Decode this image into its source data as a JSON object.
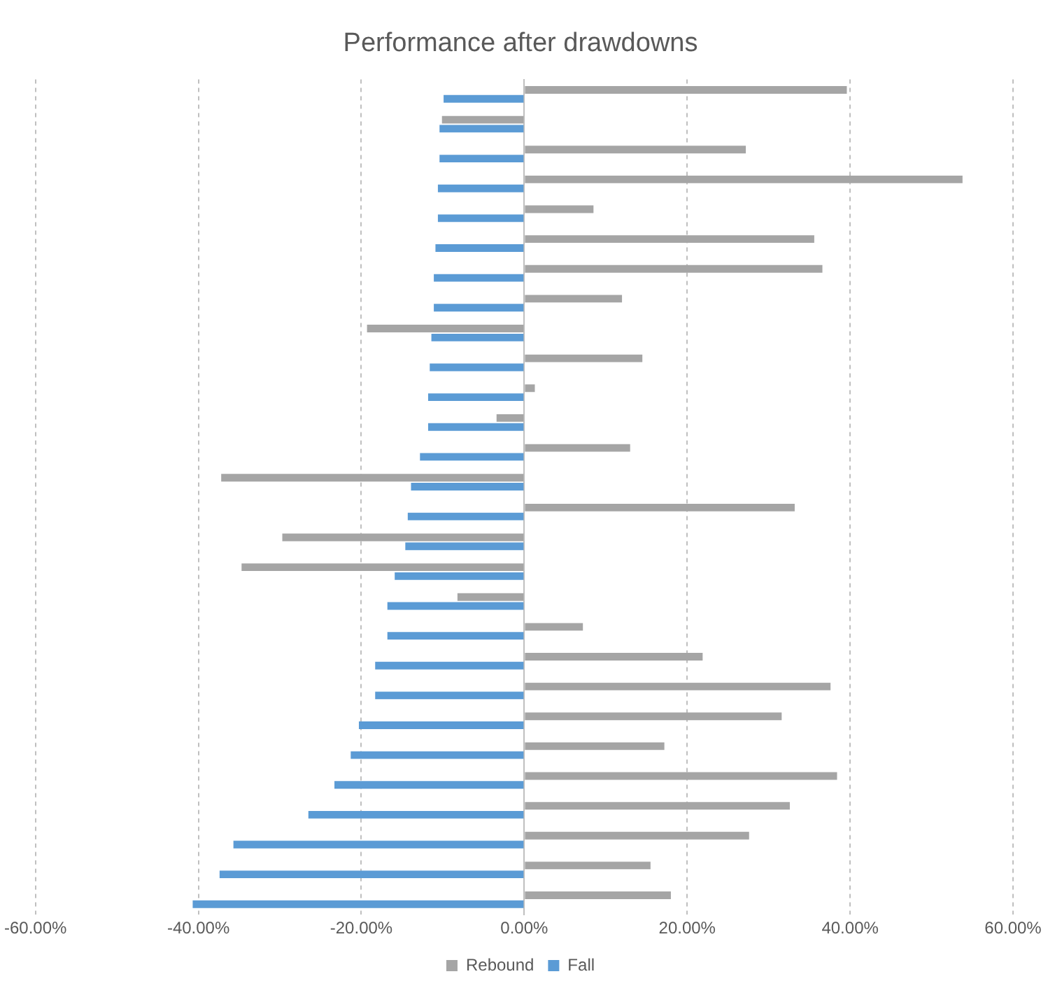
{
  "chart_data": {
    "type": "bar",
    "orientation": "horizontal",
    "title": "Performance after drawdowns",
    "categories": [
      null,
      null,
      null,
      null,
      null,
      null,
      null,
      null,
      null,
      null,
      null,
      null,
      null,
      null,
      null,
      null,
      null,
      null,
      null,
      null,
      null,
      null,
      null,
      null,
      null,
      null,
      null,
      null
    ],
    "series": [
      {
        "name": "Rebound",
        "color": "#a5a5a5",
        "values": [
          39.6,
          -10.1,
          27.2,
          53.8,
          8.5,
          35.6,
          36.6,
          12.0,
          -19.3,
          14.5,
          1.3,
          -3.4,
          13.0,
          -37.2,
          33.2,
          -29.7,
          -34.7,
          -8.2,
          7.2,
          21.9,
          37.6,
          31.6,
          17.2,
          38.4,
          32.6,
          27.6,
          15.5,
          18.0
        ]
      },
      {
        "name": "Fall",
        "color": "#5b9bd5",
        "values": [
          -9.9,
          -10.4,
          -10.4,
          -10.6,
          -10.6,
          -10.9,
          -11.1,
          -11.1,
          -11.4,
          -11.6,
          -11.8,
          -11.8,
          -12.8,
          -13.9,
          -14.3,
          -14.6,
          -15.9,
          -16.8,
          -16.8,
          -18.3,
          -18.3,
          -20.3,
          -21.3,
          -23.3,
          -26.5,
          -35.7,
          -37.4,
          -40.7
        ]
      }
    ],
    "xlim": [
      -60,
      60
    ],
    "xticks": [
      {
        "value": -60,
        "label": "-60.00%"
      },
      {
        "value": -40,
        "label": "-40.00%"
      },
      {
        "value": -20,
        "label": "-20.00%"
      },
      {
        "value": 0,
        "label": "0.00%"
      },
      {
        "value": 20,
        "label": "20.00%"
      },
      {
        "value": 40,
        "label": "40.00%"
      },
      {
        "value": 60,
        "label": "60.00%"
      }
    ],
    "grid": "x",
    "legend": "bottom",
    "tick_labels": "x"
  }
}
